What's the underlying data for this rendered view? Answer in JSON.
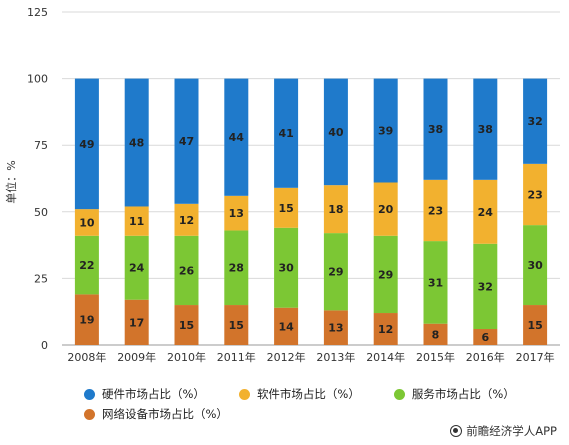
{
  "chart_data": {
    "type": "bar",
    "stacked": true,
    "categories": [
      "2008年",
      "2009年",
      "2010年",
      "2011年",
      "2012年",
      "2013年",
      "2014年",
      "2015年",
      "2016年",
      "2017年"
    ],
    "series": [
      {
        "name": "网络设备市场占比（%）",
        "color": "#D2742B",
        "values": [
          19,
          17,
          15,
          15,
          14,
          13,
          12,
          8,
          6,
          15
        ]
      },
      {
        "name": "服务市场占比（%）",
        "color": "#7CC734",
        "values": [
          22,
          24,
          26,
          28,
          30,
          29,
          29,
          31,
          32,
          30
        ]
      },
      {
        "name": "软件市场占比（%）",
        "color": "#F2B12F",
        "values": [
          10,
          11,
          12,
          13,
          15,
          18,
          20,
          23,
          24,
          23
        ]
      },
      {
        "name": "硬件市场占比（%）",
        "color": "#1F7ACB",
        "values": [
          49,
          48,
          47,
          44,
          41,
          40,
          39,
          38,
          38,
          32
        ]
      }
    ],
    "ylabel": "单位：%",
    "ylim": [
      0,
      125
    ],
    "yticks": [
      0,
      25,
      50,
      75,
      100,
      125
    ],
    "grid": true,
    "legend_position": "bottom"
  },
  "legend": {
    "row1": [
      "硬件市场占比（%）",
      "软件市场占比（%）",
      "服务市场占比（%）"
    ],
    "row2": [
      "网络设备市场占比（%）"
    ]
  },
  "source": "前瞻经济学人APP"
}
